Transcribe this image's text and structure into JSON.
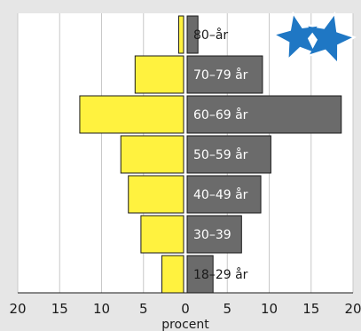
{
  "chart_data": {
    "type": "bar",
    "orientation": "horizontal-diverging",
    "title": "",
    "xlabel": "procent",
    "ylabel": "",
    "categories": [
      "18–29 år",
      "30–39",
      "40–49 år",
      "50–59 år",
      "60–69 år",
      "70–79 år",
      "80–år"
    ],
    "series": [
      {
        "side": "left",
        "color": "#fff23f",
        "values": [
          2.8,
          5.3,
          6.8,
          7.7,
          12.6,
          6.0,
          0.8
        ]
      },
      {
        "side": "right",
        "color": "#6b6b6b",
        "values": [
          3.3,
          6.7,
          9.0,
          10.2,
          18.6,
          9.2,
          1.5
        ]
      }
    ],
    "xlim": [
      -20,
      20
    ],
    "x_ticks": [
      {
        "value": -20,
        "label": "20"
      },
      {
        "value": -15,
        "label": "15"
      },
      {
        "value": -10,
        "label": "10"
      },
      {
        "value": -5,
        "label": "5"
      },
      {
        "value": 0,
        "label": "0"
      },
      {
        "value": 5,
        "label": "5"
      },
      {
        "value": 10,
        "label": "10"
      },
      {
        "value": 15,
        "label": "15"
      },
      {
        "value": 20,
        "label": "20"
      }
    ],
    "grid": true,
    "legend": "none",
    "colors": {
      "background": "#e6e6e6",
      "plot_background": "#ffffff",
      "grid": "#c8c8c8",
      "bar_stroke": "#1a1a1a",
      "logo": "#1f77c4"
    },
    "logo_icon": "star-logo-icon"
  }
}
